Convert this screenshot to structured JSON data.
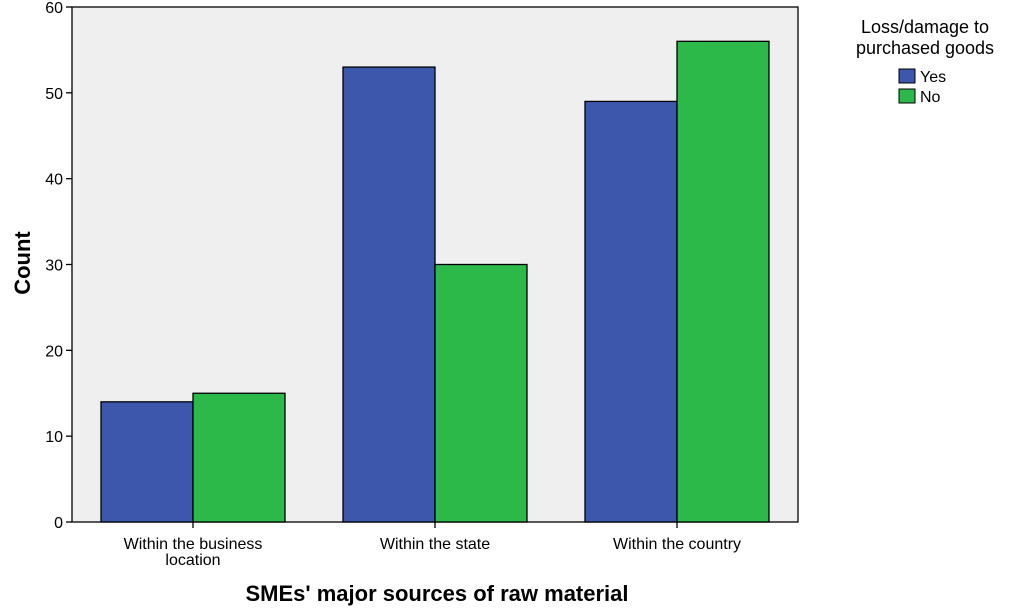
{
  "chart_data": {
    "type": "bar",
    "xlabel": "SMEs' major sources of raw material",
    "ylabel": "Count",
    "categories": [
      "Within the business location",
      "Within the state",
      "Within the country"
    ],
    "category_lines": [
      [
        "Within the business",
        "location"
      ],
      [
        "Within the state"
      ],
      [
        "Within the country"
      ]
    ],
    "series": [
      {
        "name": "Yes",
        "values": [
          14,
          53,
          49
        ],
        "color": "#3d57ad"
      },
      {
        "name": "No",
        "values": [
          15,
          30,
          56
        ],
        "color": "#2db84a"
      }
    ],
    "ylim": [
      0,
      60
    ],
    "yticks": [
      0,
      10,
      20,
      30,
      40,
      50,
      60
    ],
    "grid": false,
    "plot_background": "#efefef",
    "legend": {
      "title_lines": [
        "Loss/damage to",
        "purchased goods"
      ],
      "position": "top-right-outside"
    }
  }
}
